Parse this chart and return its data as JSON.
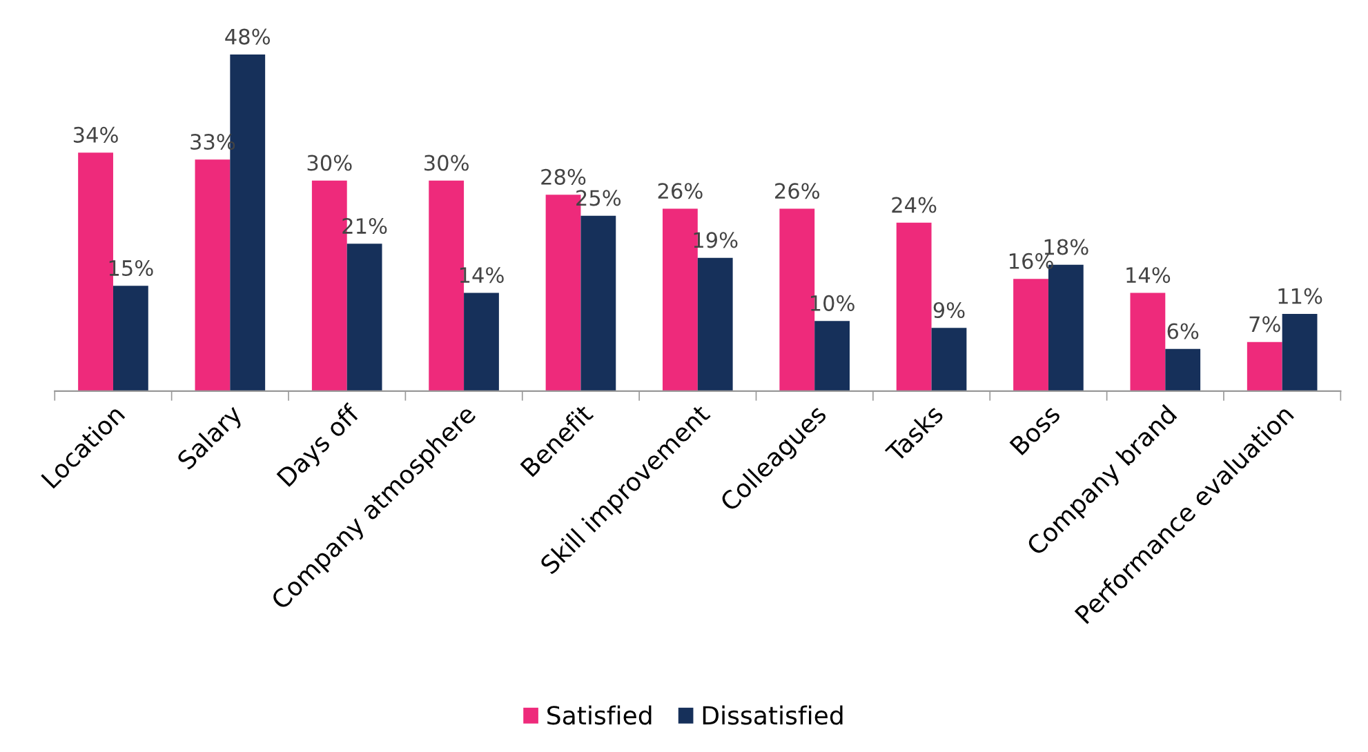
{
  "chart_data": {
    "type": "bar",
    "categories": [
      "Location",
      "Salary",
      "Days off",
      "Company atmosphere",
      "Benefit",
      "Skill improvement",
      "Colleagues",
      "Tasks",
      "Boss",
      "Company brand",
      "Performance evaluation"
    ],
    "series": [
      {
        "name": "Satisfied",
        "color": "#ee2a7b",
        "values": [
          34,
          33,
          30,
          30,
          28,
          26,
          26,
          24,
          16,
          14,
          7
        ],
        "value_labels": [
          "34%",
          "33%",
          "30%",
          "30%",
          "28%",
          "26%",
          "26%",
          "24%",
          "16%",
          "14%",
          "7%"
        ]
      },
      {
        "name": "Dissatisfied",
        "color": "#16305a",
        "values": [
          15,
          48,
          21,
          14,
          25,
          19,
          10,
          9,
          18,
          6,
          11
        ],
        "value_labels": [
          "15%",
          "48%",
          "21%",
          "14%",
          "25%",
          "19%",
          "10%",
          "9%",
          "18%",
          "6%",
          "11%"
        ]
      }
    ],
    "legend": "bottom",
    "grid": false
  }
}
